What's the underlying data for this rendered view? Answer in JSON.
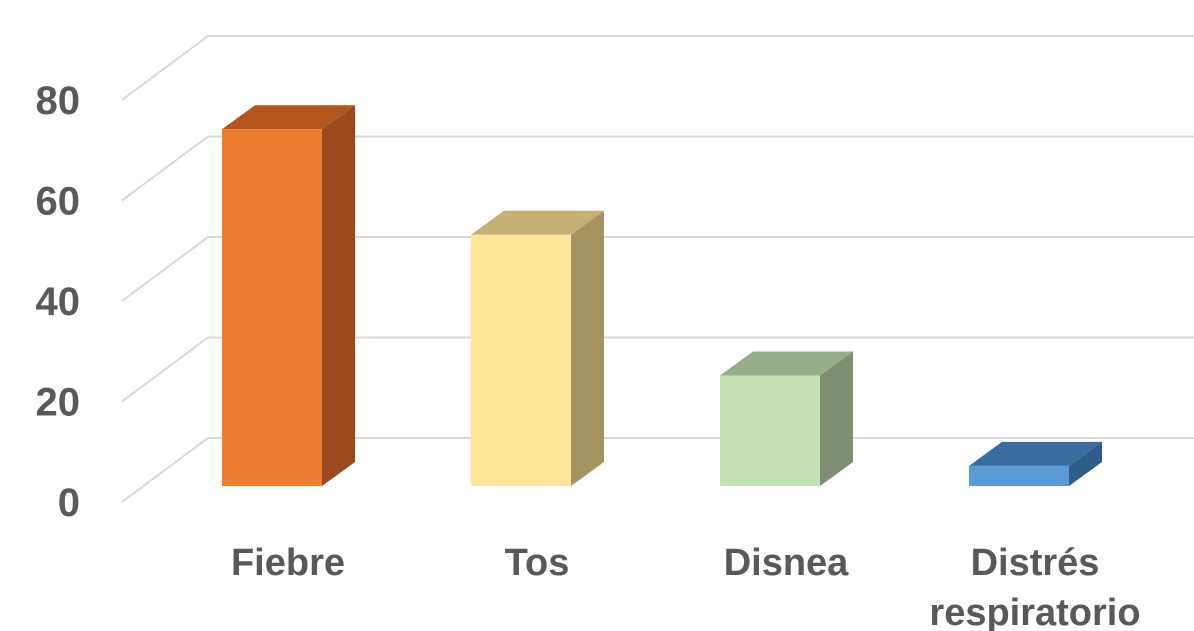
{
  "chart_data": {
    "type": "bar",
    "style": "3d-column",
    "title": "",
    "xlabel": "",
    "ylabel": "",
    "categories": [
      "Fiebre",
      "Tos",
      "Disnea",
      "Distrés respiratorio"
    ],
    "category_lines": [
      [
        "Fiebre"
      ],
      [
        "Tos"
      ],
      [
        "Disnea"
      ],
      [
        "Distrés",
        "respiratorio"
      ]
    ],
    "values": [
      71,
      50,
      22,
      4
    ],
    "colors": [
      {
        "front": "#ed7d31",
        "top": "#b4561e",
        "side": "#9a4a1c"
      },
      {
        "front": "#fee599",
        "top": "#c5b073",
        "side": "#a39462"
      },
      {
        "front": "#c5e0b4",
        "top": "#96ad89",
        "side": "#7d8e72"
      },
      {
        "front": "#5b9bd5",
        "top": "#3a6d9f",
        "side": "#2f5d8a"
      }
    ],
    "ylim": [
      0,
      80
    ],
    "yticks": [
      "0",
      "20",
      "40",
      "60",
      "80"
    ],
    "grid": true,
    "legend": "none"
  }
}
